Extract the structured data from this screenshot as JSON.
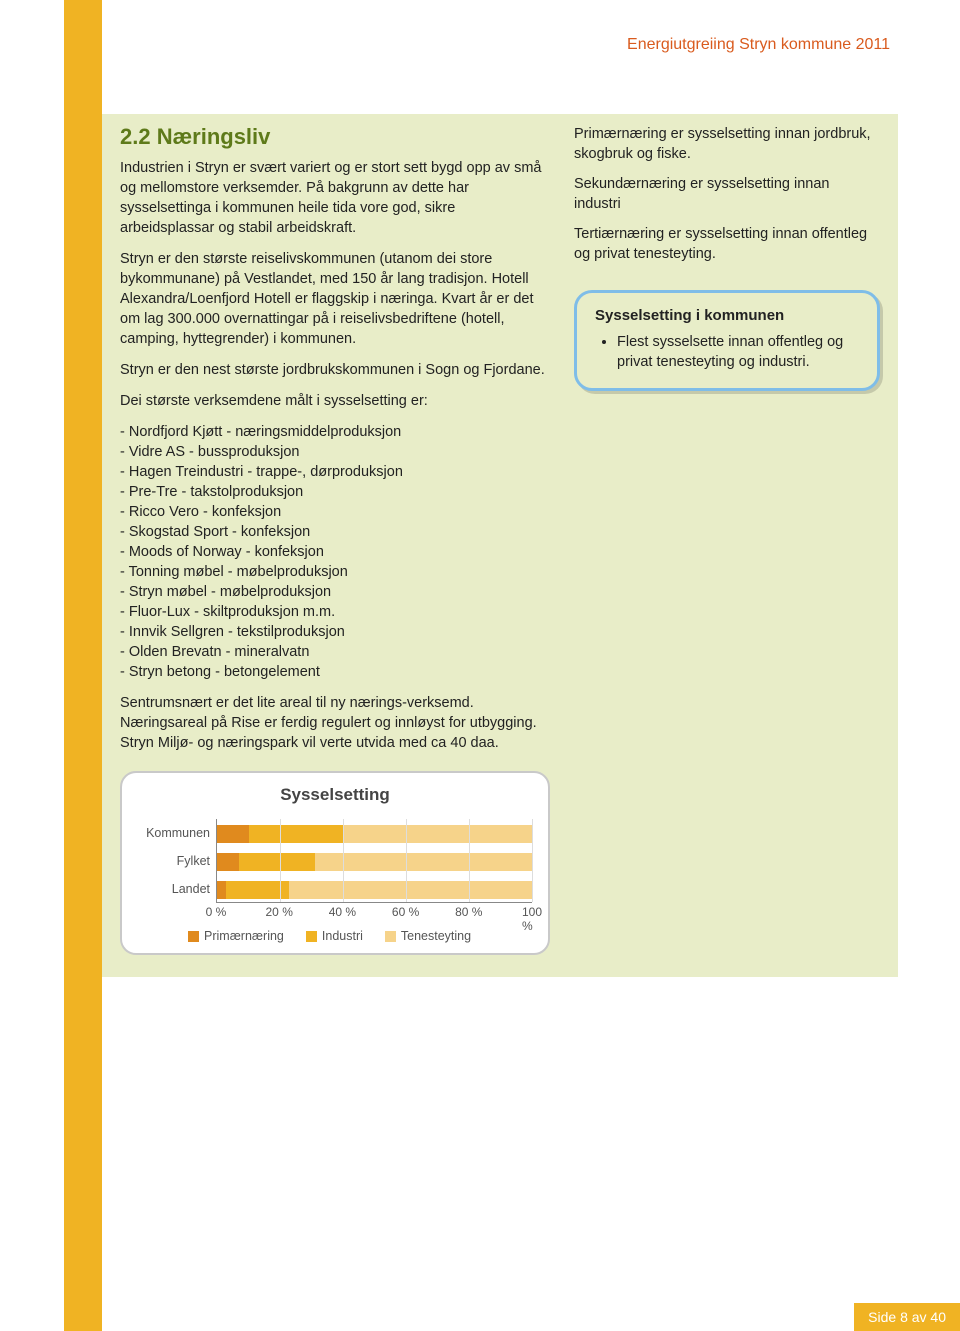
{
  "header": {
    "title": "Energiutgreiing Stryn kommune 2011"
  },
  "section": {
    "title": "2.2  Næringsliv",
    "p1": "Industrien i Stryn er svært variert og er stort sett bygd opp av små og mellomstore verksemder. På bakgrunn av dette har sysselsettinga i kommunen heile tida vore god, sikre arbeidsplassar og stabil arbeidskraft.",
    "p2": "Stryn er den største reiselivskommunen (utanom dei store bykommunane) på Vestlandet, med 150 år lang tradisjon. Hotell Alexandra/Loenfjord Hotell er flaggskip i næringa. Kvart år er det om lag 300.000 overnattingar på i reiselivsbedriftene (hotell, camping, hyttegrender) i kommunen.",
    "p3": "Stryn er den nest største jordbrukskommunen i Sogn og Fjordane.",
    "p4": "Dei største verksemdene målt i sysselsetting er:",
    "companies": [
      "- Nordfjord Kjøtt - næringsmiddelproduksjon",
      "- Vidre AS - bussproduksjon",
      "- Hagen Treindustri - trappe-, dørproduksjon",
      "- Pre-Tre - takstolproduksjon",
      "- Ricco Vero - konfeksjon",
      "- Skogstad Sport - konfeksjon",
      "- Moods of Norway - konfeksjon",
      "- Tonning møbel - møbelproduksjon",
      "- Stryn møbel - møbelproduksjon",
      "- Fluor-Lux - skiltproduksjon m.m.",
      "- Innvik Sellgren - tekstilproduksjon",
      "- Olden Brevatn - mineralvatn",
      "- Stryn betong - betongelement"
    ],
    "p5": "Sentrumsnært er det lite areal til ny nærings-verksemd. Næringsareal på Rise er ferdig regulert og innløyst for utbygging. Stryn Miljø- og næringspark vil verte utvida med ca 40 daa."
  },
  "definitions": {
    "d1": "Primærnæring er sysselsetting innan jordbruk, skogbruk og fiske.",
    "d2": "Sekundærnæring er sysselsetting innan industri",
    "d3": "Tertiærnæring er sysselsetting innan offentleg og privat tenesteyting."
  },
  "callout": {
    "title": "Sysselsetting i kommunen",
    "bullet": "Flest sysselsette innan offentleg og privat tenesteyting og industri."
  },
  "chart": {
    "title": "Sysselsetting",
    "categories": [
      "Kommunen",
      "Fylket",
      "Landet"
    ],
    "series": [
      "Primærnæring",
      "Industri",
      "Tenesteyting"
    ],
    "colors": [
      "#e08a1e",
      "#f0b323",
      "#f6d38a"
    ],
    "data": {
      "Kommunen": [
        10,
        30,
        60
      ],
      "Fylket": [
        7,
        24,
        69
      ],
      "Landet": [
        3,
        20,
        77
      ]
    },
    "xticks": [
      "0 %",
      "20 %",
      "40 %",
      "60 %",
      "80 %",
      "100 %"
    ],
    "background": "#ffffff",
    "border_color": "#c9c9c9",
    "grid_color": "#dddddd",
    "axis_color": "#888888",
    "title_fontsize": 17,
    "label_fontsize": 12.5
  },
  "footer": {
    "text": "Side 8 av 40"
  }
}
